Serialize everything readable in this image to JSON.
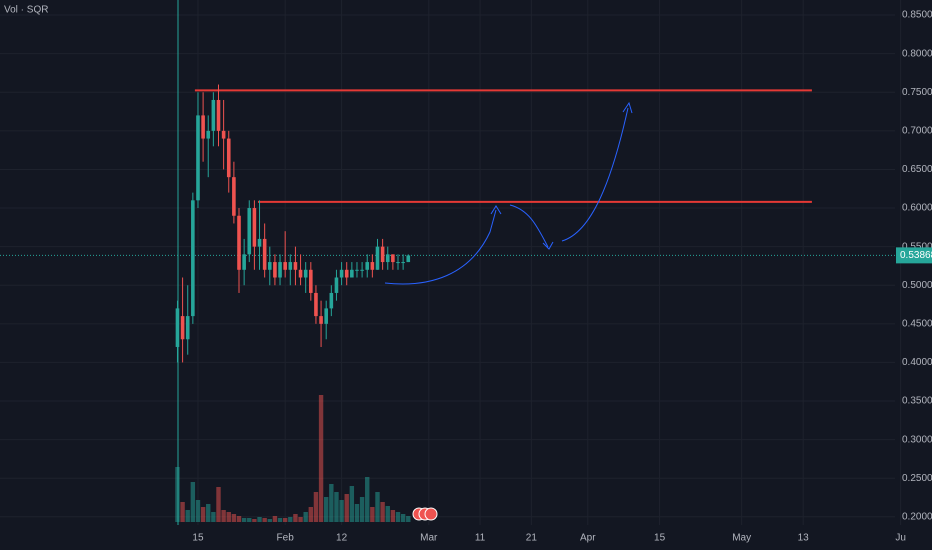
{
  "chart_data": {
    "type": "candlestick",
    "title": "Vol · SQR",
    "up_color": "#26a69a",
    "down_color": "#ef5350",
    "x": [
      10,
      11,
      12,
      13,
      14,
      15,
      16,
      17,
      18,
      19,
      20,
      21,
      22,
      23,
      24,
      25,
      26,
      27,
      28,
      29,
      30,
      31,
      32,
      33,
      34,
      35,
      36,
      37,
      38,
      39,
      40,
      41,
      42,
      43,
      44,
      45,
      46,
      47,
      48,
      49,
      50,
      51,
      52,
      53,
      54,
      55
    ],
    "open": [
      0.42,
      0.46,
      0.43,
      0.46,
      0.61,
      0.72,
      0.69,
      0.7,
      0.74,
      0.7,
      0.69,
      0.64,
      0.59,
      0.52,
      0.54,
      0.6,
      0.55,
      0.56,
      0.52,
      0.53,
      0.51,
      0.53,
      0.52,
      0.53,
      0.52,
      0.51,
      0.52,
      0.49,
      0.46,
      0.45,
      0.47,
      0.49,
      0.51,
      0.52,
      0.51,
      0.52,
      0.52,
      0.52,
      0.53,
      0.52,
      0.55,
      0.53,
      0.54,
      0.53,
      0.53,
      0.53
    ],
    "high": [
      0.48,
      0.51,
      0.5,
      0.62,
      0.75,
      0.75,
      0.72,
      0.75,
      0.76,
      0.74,
      0.7,
      0.66,
      0.6,
      0.56,
      0.61,
      0.61,
      0.61,
      0.58,
      0.55,
      0.54,
      0.54,
      0.57,
      0.54,
      0.55,
      0.54,
      0.53,
      0.53,
      0.5,
      0.48,
      0.48,
      0.5,
      0.52,
      0.53,
      0.53,
      0.53,
      0.53,
      0.53,
      0.54,
      0.54,
      0.56,
      0.56,
      0.55,
      0.54,
      0.54,
      0.54,
      0.54
    ],
    "low": [
      0.4,
      0.4,
      0.41,
      0.45,
      0.6,
      0.66,
      0.64,
      0.68,
      0.68,
      0.65,
      0.62,
      0.58,
      0.49,
      0.5,
      0.53,
      0.52,
      0.52,
      0.51,
      0.5,
      0.5,
      0.5,
      0.51,
      0.5,
      0.5,
      0.5,
      0.49,
      0.48,
      0.45,
      0.42,
      0.43,
      0.46,
      0.48,
      0.5,
      0.5,
      0.51,
      0.51,
      0.51,
      0.51,
      0.51,
      0.52,
      0.52,
      0.52,
      0.52,
      0.52,
      0.52,
      0.53
    ],
    "close": [
      0.47,
      0.43,
      0.46,
      0.61,
      0.72,
      0.69,
      0.7,
      0.74,
      0.7,
      0.69,
      0.64,
      0.59,
      0.52,
      0.54,
      0.6,
      0.55,
      0.56,
      0.52,
      0.53,
      0.51,
      0.53,
      0.52,
      0.53,
      0.52,
      0.51,
      0.52,
      0.49,
      0.46,
      0.45,
      0.47,
      0.49,
      0.51,
      0.52,
      0.51,
      0.52,
      0.52,
      0.52,
      0.53,
      0.52,
      0.55,
      0.53,
      0.54,
      0.53,
      0.53,
      0.53,
      0.5386
    ],
    "volume": [
      55,
      20,
      12,
      40,
      22,
      15,
      18,
      10,
      35,
      12,
      10,
      8,
      6,
      4,
      4,
      3,
      5,
      4,
      3,
      6,
      4,
      4,
      5,
      8,
      5,
      10,
      15,
      30,
      127,
      25,
      38,
      30,
      22,
      28,
      36,
      18,
      25,
      45,
      15,
      30,
      20,
      16,
      12,
      10,
      8,
      6
    ],
    "levels": [
      {
        "value": 0.7525,
        "x": [
          13.4,
          133.7
        ],
        "color": "#e53935"
      },
      {
        "value": 0.608,
        "x": [
          25.7,
          133.7
        ],
        "color": "#e53935"
      }
    ],
    "last_price": 0.53868,
    "xlim": [
      -24.6,
      149.9
    ],
    "ylim": [
      0.1855,
      0.8695
    ],
    "xticks": [
      {
        "value": 14,
        "label": "15"
      },
      {
        "value": 31,
        "label": "Feb"
      },
      {
        "value": 42,
        "label": "12"
      },
      {
        "value": 59,
        "label": "Mar"
      },
      {
        "value": 69,
        "label": "11"
      },
      {
        "value": 79,
        "label": "21"
      },
      {
        "value": 90,
        "label": "Apr"
      },
      {
        "value": 104,
        "label": "15"
      },
      {
        "value": 120,
        "label": "May"
      },
      {
        "value": 132,
        "label": "13"
      },
      {
        "value": 151,
        "label": "Ju"
      }
    ],
    "yticks": [
      {
        "value": 0.2,
        "label": "0.20000"
      },
      {
        "value": 0.25,
        "label": "0.25000"
      },
      {
        "value": 0.3,
        "label": "0.30000"
      },
      {
        "value": 0.35,
        "label": "0.35000"
      },
      {
        "value": 0.4,
        "label": "0.40000"
      },
      {
        "value": 0.45,
        "label": "0.45000"
      },
      {
        "value": 0.5,
        "label": "0.50000"
      },
      {
        "value": 0.55,
        "label": "0.55000"
      },
      {
        "value": 0.6,
        "label": "0.60000"
      },
      {
        "value": 0.65,
        "label": "0.65000"
      },
      {
        "value": 0.7,
        "label": "0.70000"
      },
      {
        "value": 0.75,
        "label": "0.75000"
      },
      {
        "value": 0.8,
        "label": "0.80000"
      },
      {
        "value": 0.85,
        "label": "0.85000"
      }
    ],
    "grid": true
  }
}
